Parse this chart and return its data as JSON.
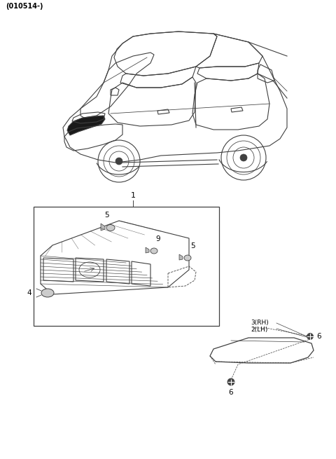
{
  "bg_color": "#ffffff",
  "text_color": "#000000",
  "header_text": "(010514-)",
  "line_color": "#404040",
  "thin_lc": "#555555",
  "fig_width": 4.8,
  "fig_height": 6.55,
  "dpi": 100
}
